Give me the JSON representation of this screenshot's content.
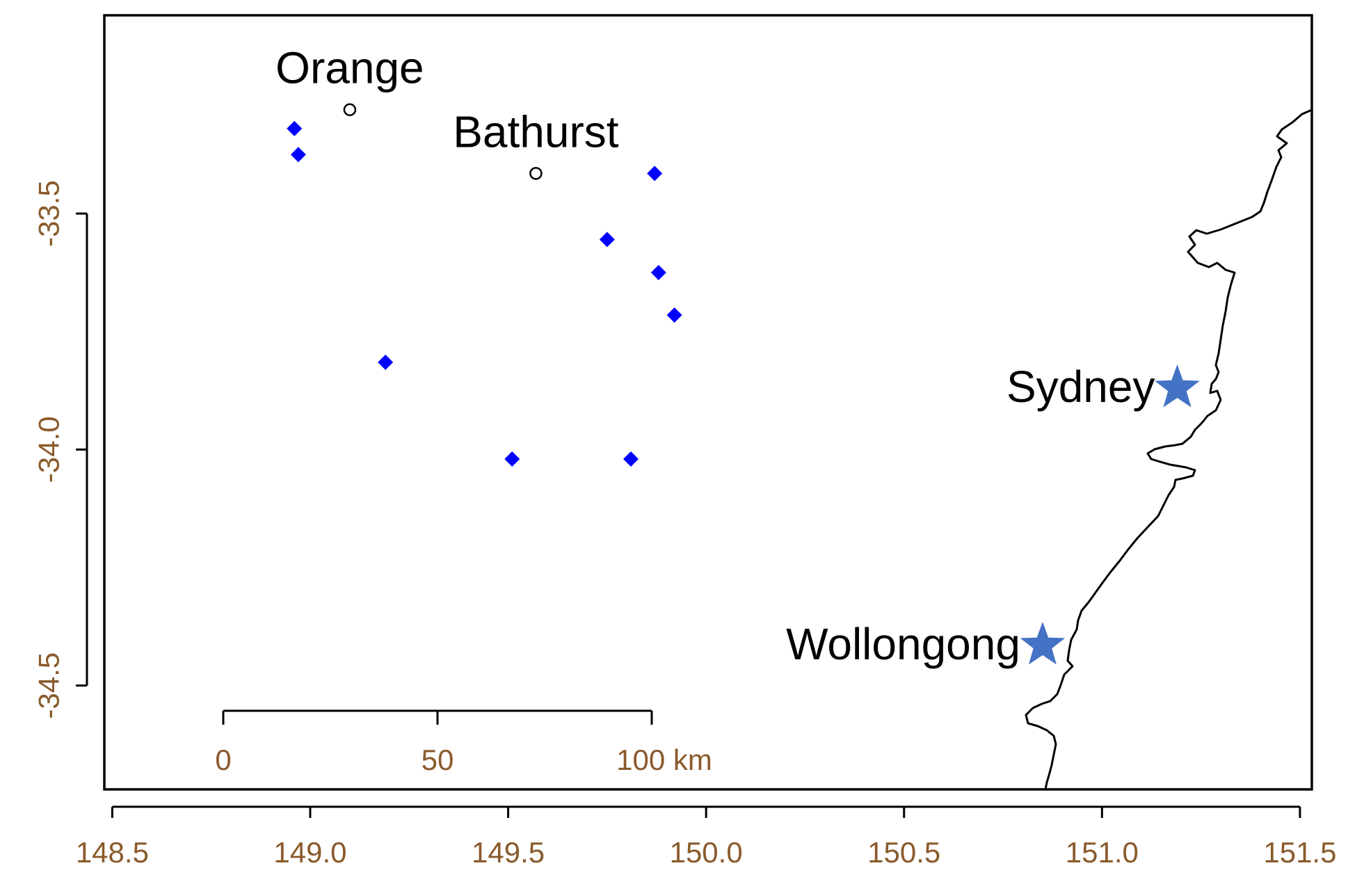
{
  "map": {
    "x_axis": {
      "ticks": [
        148.5,
        149.0,
        149.5,
        150.0,
        150.5,
        151.0,
        151.5
      ],
      "labels": [
        "148.5",
        "149.0",
        "149.5",
        "150.0",
        "150.5",
        "151.0",
        "151.5"
      ],
      "range": [
        148.48,
        151.53
      ]
    },
    "y_axis": {
      "ticks": [
        -33.5,
        -34.0,
        -34.5
      ],
      "labels": [
        "-33.5",
        "-34.0",
        "-34.5"
      ],
      "range": [
        -34.72,
        -33.08
      ]
    },
    "cities": [
      {
        "name": "Orange",
        "lon": 149.1,
        "lat": -33.28,
        "marker": "circle"
      },
      {
        "name": "Bathurst",
        "lon": 149.57,
        "lat": -33.415,
        "marker": "circle"
      },
      {
        "name": "Sydney",
        "lon": 151.19,
        "lat": -33.87,
        "marker": "star"
      },
      {
        "name": "Wollongong",
        "lon": 150.85,
        "lat": -34.415,
        "marker": "star"
      }
    ],
    "stations": [
      {
        "lon": 148.96,
        "lat": -33.32
      },
      {
        "lon": 148.97,
        "lat": -33.375
      },
      {
        "lon": 149.87,
        "lat": -33.415
      },
      {
        "lon": 149.75,
        "lat": -33.555
      },
      {
        "lon": 149.88,
        "lat": -33.625
      },
      {
        "lon": 149.92,
        "lat": -33.715
      },
      {
        "lon": 149.19,
        "lat": -33.815
      },
      {
        "lon": 149.51,
        "lat": -34.02
      },
      {
        "lon": 149.81,
        "lat": -34.02
      }
    ],
    "scale_bar": {
      "labels": [
        "0",
        "50",
        "100 km"
      ]
    },
    "colors": {
      "station": "#0000ff",
      "star": "#4472c4",
      "tick_label": "#8a5a2b"
    }
  }
}
